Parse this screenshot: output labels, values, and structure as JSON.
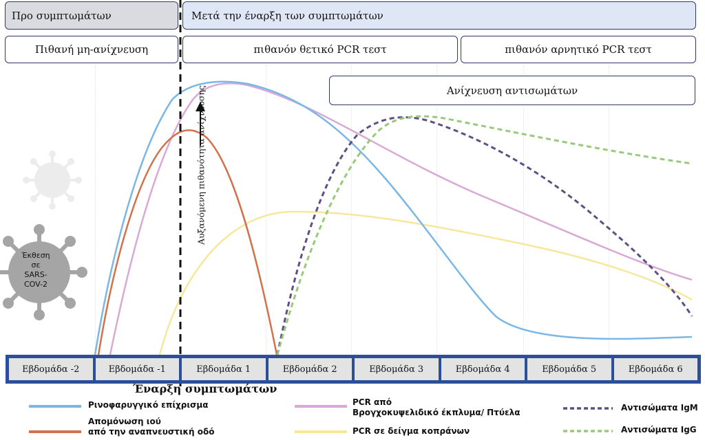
{
  "phases": {
    "pre_symptoms": "Προ συμπτωμάτων",
    "post_symptoms": "Μετά την έναρξη των συμπτωμάτων"
  },
  "detection": {
    "probable_undetection": "Πιθανή μη-ανίχνευση",
    "probable_positive_pcr": "πιθανόν θετικό PCR τεστ",
    "probable_negative_pcr": "πιθανόν αρνητικό PCR τεστ",
    "antibody_detection": "Ανίχνευση αντισωμάτων"
  },
  "rotated_label": "Αυξανόμενη πιθανότητα ανίχνευσης",
  "onset_label": "Έναρξη συμπτωμάτων",
  "exposure_text": [
    "Έκθεση",
    "σε",
    "SARS-",
    "COV-2"
  ],
  "weeks": [
    "Εβδομάδα -2",
    "Εβδομάδα -1",
    "Εβδομάδα 1",
    "Εβδομάδα 2",
    "Εβδομάδα 3",
    "Εβδομάδα 4",
    "Εβδομάδα 5",
    "Εβδομάδα 6"
  ],
  "legend": {
    "nasopharyngeal": "Ρινοφαρυγγικό επίχρισμα",
    "virus_isolation_line1": "Απομόνωση ιού",
    "virus_isolation_line2": "από την αναπνευστική οδό",
    "pcr_bal_line1": "PCR από",
    "pcr_bal_line2": "Βρογχοκυψελιδικό έκπλυμα/ Πτύελα",
    "pcr_stool": "PCR σε δείγμα κοπράνων",
    "igm": "Αντισώματα IgM",
    "igg": "Αντισώματα IgG"
  },
  "colors": {
    "nasopharyngeal": "#7ab7e6",
    "virus_isolation": "#d2714b",
    "pcr_bal": "#d9a8d4",
    "pcr_stool": "#f6e79a",
    "igm": "#5e4e86",
    "igg": "#98c97a",
    "week_bar": "#2d4f9a"
  }
}
